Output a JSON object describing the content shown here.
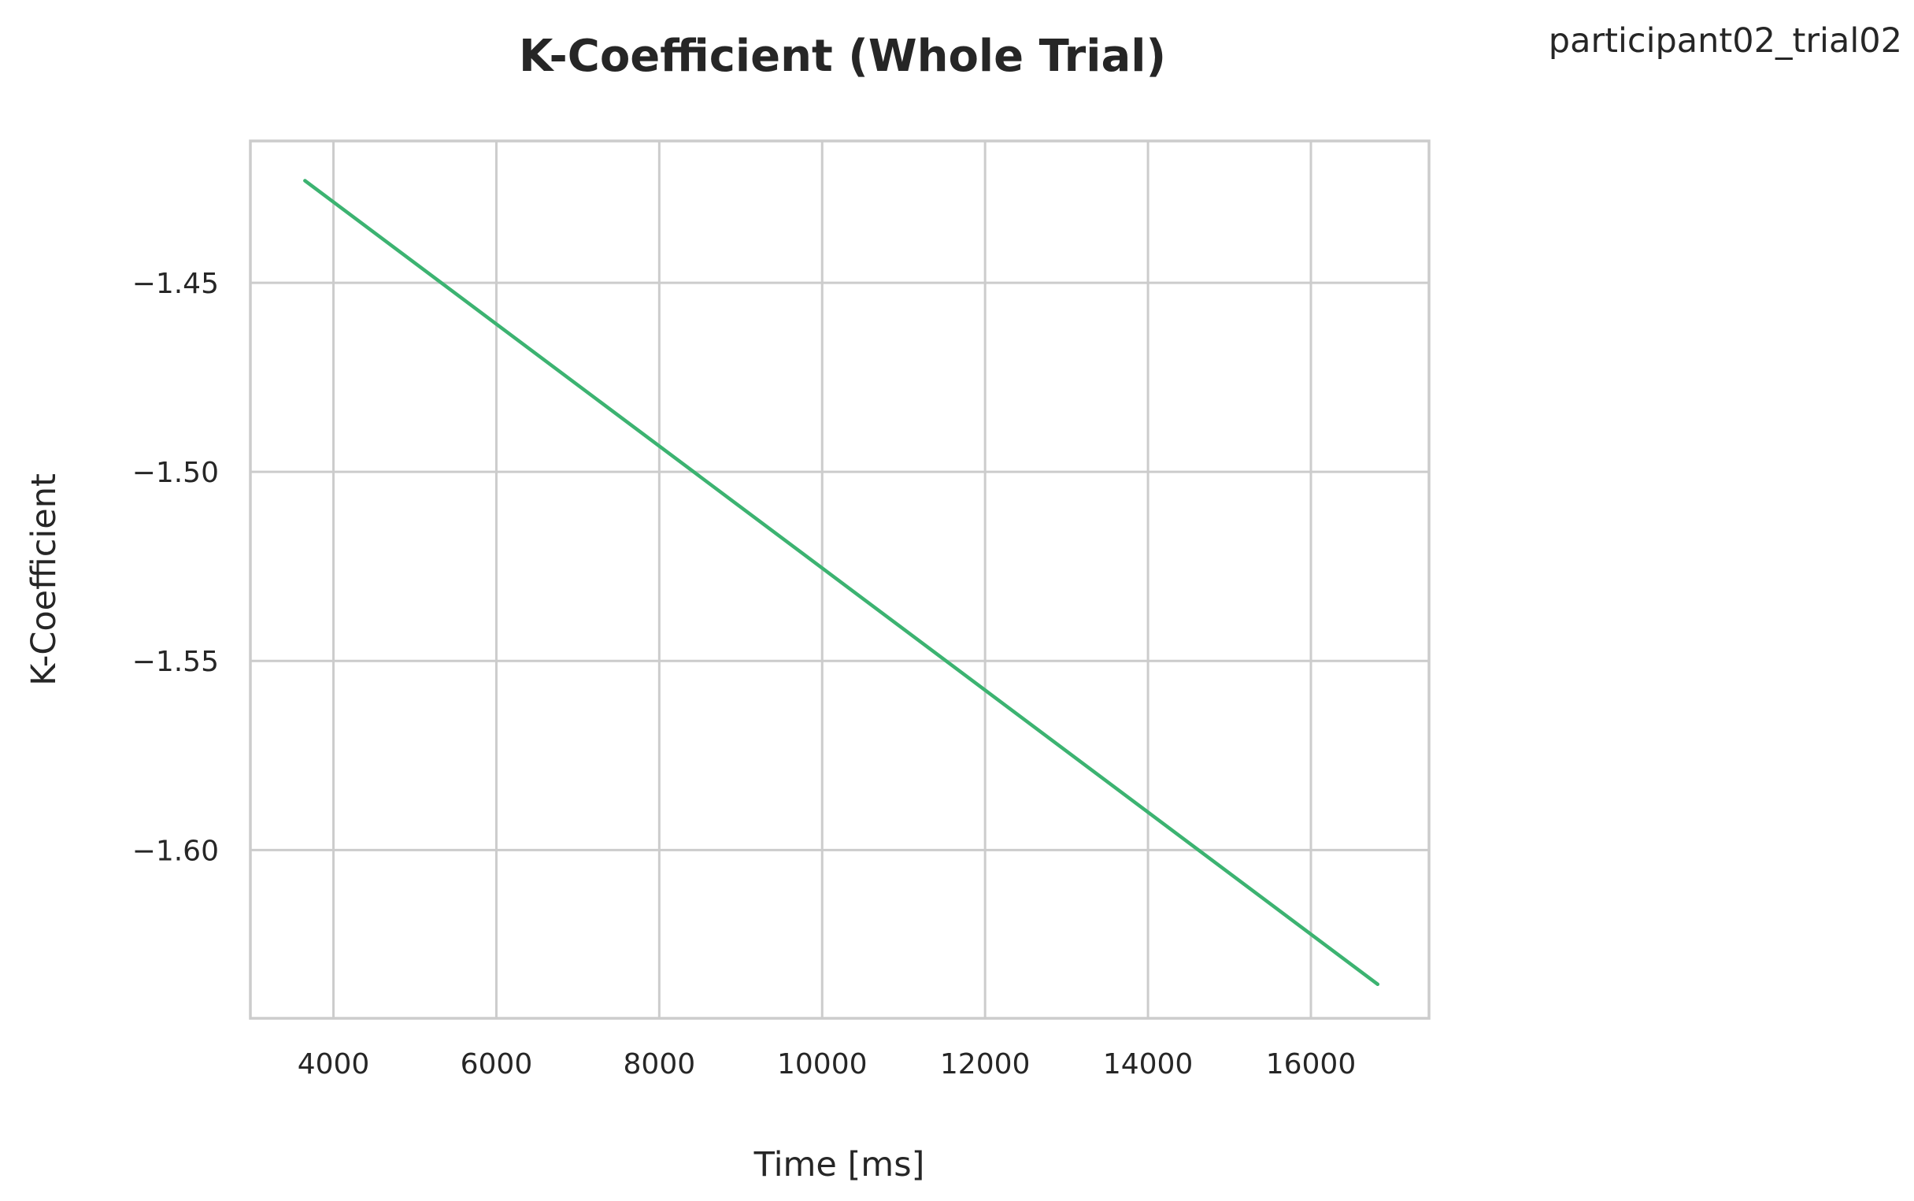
{
  "corner_label": "participant02_trial02",
  "colors": {
    "series": "#3cb371",
    "grid": "#cccccc",
    "text": "#262626"
  },
  "chart_data": {
    "type": "line",
    "title": "K-Coefficient (Whole Trial)",
    "xlabel": "Time [ms]",
    "ylabel": "K-Coefficient",
    "xlim": [
      2980,
      17450
    ],
    "ylim": [
      -1.6445,
      -1.4125
    ],
    "x_ticks": [
      4000,
      6000,
      8000,
      10000,
      12000,
      14000,
      16000
    ],
    "x_tick_labels": [
      "4000",
      "6000",
      "8000",
      "10000",
      "12000",
      "14000",
      "16000"
    ],
    "y_ticks": [
      -1.45,
      -1.5,
      -1.55,
      -1.6
    ],
    "y_tick_labels": [
      "−1.45",
      "−1.50",
      "−1.55",
      "−1.60"
    ],
    "grid": true,
    "series": [
      {
        "x": [
          3650,
          16820
        ],
        "y": [
          -1.423,
          -1.6355
        ]
      }
    ]
  }
}
